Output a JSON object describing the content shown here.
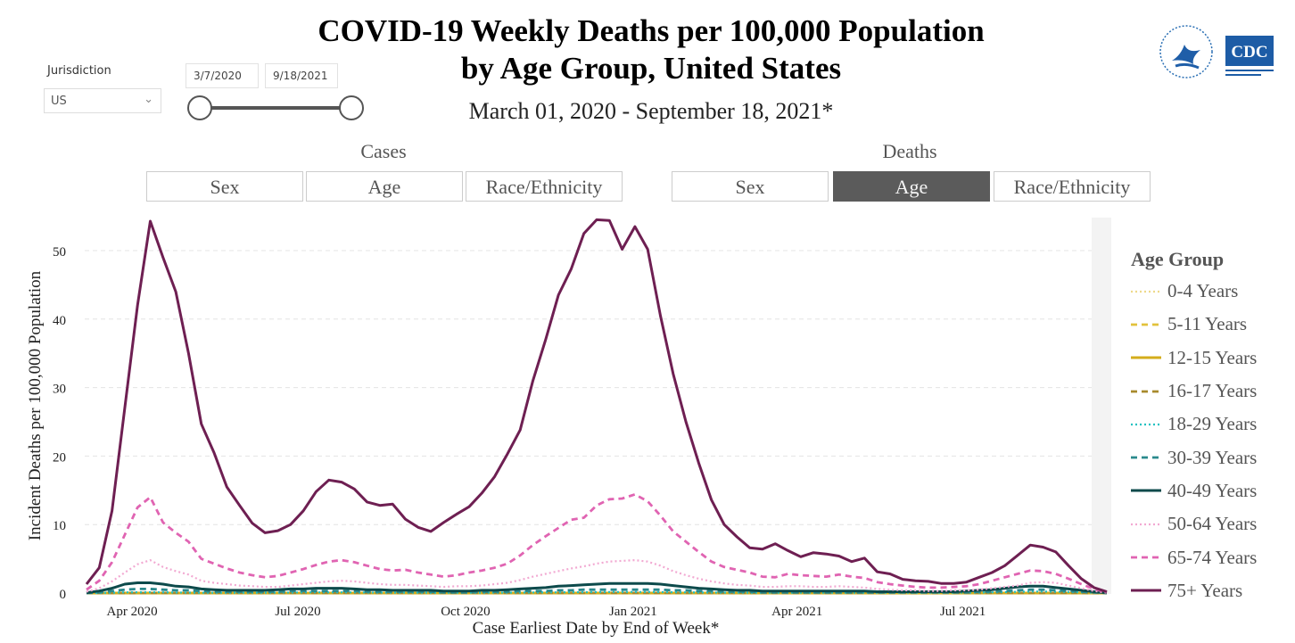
{
  "header": {
    "title_line1": "COVID-19 Weekly Deaths per 100,000 Population",
    "title_line2": "by Age Group, United States",
    "subtitle": "March 01, 2020 - September 18, 2021*",
    "logos": [
      "HHS",
      "CDC"
    ]
  },
  "filters": {
    "jurisdiction_label": "Jurisdiction",
    "jurisdiction_value": "US",
    "start_date": "3/7/2020",
    "end_date": "9/18/2021"
  },
  "tabs": {
    "cases_label": "Cases",
    "deaths_label": "Deaths",
    "cases": [
      "Sex",
      "Age",
      "Race/Ethnicity"
    ],
    "deaths": [
      "Sex",
      "Age",
      "Race/Ethnicity"
    ],
    "active": "Deaths/Age"
  },
  "chart_data": {
    "type": "line",
    "title": "COVID-19 Weekly Deaths per 100,000 Population by Age Group, United States",
    "xlabel": "Case Earliest Date by End of Week*",
    "ylabel": "Incident Deaths per 100,000 Population",
    "x_start": "2020-03-07",
    "x_step_days": 7,
    "ylim": [
      0,
      55
    ],
    "yticks": [
      0,
      10,
      20,
      30,
      40,
      50
    ],
    "xticks": [
      {
        "label": "Apr 2020",
        "date": "2020-04-01"
      },
      {
        "label": "Jul 2020",
        "date": "2020-07-01"
      },
      {
        "label": "Oct 2020",
        "date": "2020-10-01"
      },
      {
        "label": "Jan 2021",
        "date": "2021-01-01"
      },
      {
        "label": "Apr 2021",
        "date": "2021-04-01"
      },
      {
        "label": "Jul 2021",
        "date": "2021-07-01"
      }
    ],
    "grid": true,
    "legend_title": "Age Group",
    "legend_position": "right",
    "series": [
      {
        "name": "0-4 Years",
        "color": "#eed98a",
        "dash": "dot",
        "values": [
          0,
          0,
          0,
          0,
          0.01,
          0.01,
          0.01,
          0.01,
          0.01,
          0.01,
          0.01,
          0.01,
          0.01,
          0.01,
          0.01,
          0.01,
          0.01,
          0.01,
          0.01,
          0.01,
          0.01,
          0.01,
          0.01,
          0.01,
          0.01,
          0.01,
          0.01,
          0.01,
          0.01,
          0.01,
          0.01,
          0.01,
          0.01,
          0.01,
          0.01,
          0.01,
          0.01,
          0.01,
          0.01,
          0.01,
          0.01,
          0.01,
          0.01,
          0.01,
          0.01,
          0.01,
          0.01,
          0.01,
          0.01,
          0.01,
          0.01,
          0.01,
          0.01,
          0.01,
          0.01,
          0.01,
          0.01,
          0.01,
          0.01,
          0.01,
          0.01,
          0.01,
          0.01,
          0.01,
          0.01,
          0.01,
          0.01,
          0.01,
          0.01,
          0.01,
          0.01,
          0.01,
          0.01,
          0.01,
          0.01,
          0.01,
          0.01,
          0.01,
          0.01,
          0,
          0
        ]
      },
      {
        "name": "5-11 Years",
        "color": "#e2c23c",
        "dash": "dash",
        "values": [
          0,
          0,
          0,
          0,
          0,
          0,
          0,
          0,
          0,
          0,
          0,
          0,
          0,
          0,
          0,
          0,
          0,
          0,
          0,
          0,
          0,
          0,
          0,
          0,
          0,
          0,
          0,
          0,
          0,
          0,
          0,
          0,
          0,
          0,
          0,
          0,
          0,
          0,
          0,
          0,
          0,
          0,
          0,
          0,
          0,
          0,
          0,
          0,
          0,
          0,
          0,
          0,
          0,
          0,
          0,
          0,
          0,
          0,
          0,
          0,
          0,
          0,
          0,
          0,
          0,
          0,
          0,
          0,
          0,
          0,
          0,
          0,
          0,
          0,
          0,
          0,
          0,
          0,
          0,
          0,
          0
        ]
      },
      {
        "name": "12-15 Years",
        "color": "#d4ad1c",
        "dash": "solid",
        "values": [
          0,
          0,
          0,
          0,
          0,
          0,
          0,
          0,
          0,
          0,
          0,
          0,
          0,
          0,
          0,
          0,
          0,
          0,
          0,
          0,
          0,
          0,
          0,
          0,
          0,
          0,
          0,
          0,
          0,
          0,
          0,
          0,
          0,
          0,
          0,
          0,
          0,
          0,
          0,
          0,
          0,
          0,
          0,
          0,
          0,
          0,
          0,
          0,
          0,
          0,
          0,
          0,
          0,
          0,
          0,
          0,
          0,
          0,
          0,
          0,
          0,
          0,
          0,
          0,
          0,
          0,
          0,
          0,
          0,
          0,
          0,
          0,
          0,
          0,
          0,
          0,
          0,
          0,
          0,
          0,
          0
        ]
      },
      {
        "name": "16-17 Years",
        "color": "#a88a2c",
        "dash": "dash",
        "values": [
          0,
          0,
          0,
          0,
          0.01,
          0.01,
          0.01,
          0.01,
          0.01,
          0.01,
          0.01,
          0.01,
          0.01,
          0.01,
          0.01,
          0.01,
          0.01,
          0.01,
          0.01,
          0.01,
          0.01,
          0.01,
          0.01,
          0.01,
          0.01,
          0.01,
          0.01,
          0.01,
          0.01,
          0.01,
          0.01,
          0.01,
          0.01,
          0.01,
          0.01,
          0.01,
          0.01,
          0.01,
          0.01,
          0.01,
          0.01,
          0.01,
          0.01,
          0.01,
          0.01,
          0.01,
          0.01,
          0.01,
          0.01,
          0.01,
          0.01,
          0.01,
          0.01,
          0.01,
          0.01,
          0.01,
          0.01,
          0.01,
          0.01,
          0.01,
          0.01,
          0.01,
          0.01,
          0.01,
          0.01,
          0.01,
          0.01,
          0.01,
          0.01,
          0.01,
          0.01,
          0.01,
          0.01,
          0.01,
          0.01,
          0.01,
          0.01,
          0.01,
          0.01,
          0,
          0
        ]
      },
      {
        "name": "18-29 Years",
        "color": "#22c1c1",
        "dash": "dot",
        "values": [
          0,
          0.02,
          0.05,
          0.1,
          0.12,
          0.12,
          0.1,
          0.08,
          0.07,
          0.05,
          0.05,
          0.05,
          0.05,
          0.05,
          0.05,
          0.06,
          0.08,
          0.1,
          0.1,
          0.1,
          0.1,
          0.1,
          0.08,
          0.07,
          0.06,
          0.06,
          0.05,
          0.05,
          0.05,
          0.05,
          0.05,
          0.05,
          0.06,
          0.07,
          0.08,
          0.09,
          0.1,
          0.11,
          0.12,
          0.13,
          0.14,
          0.15,
          0.15,
          0.15,
          0.15,
          0.14,
          0.12,
          0.1,
          0.09,
          0.08,
          0.07,
          0.06,
          0.05,
          0.05,
          0.05,
          0.05,
          0.05,
          0.05,
          0.05,
          0.05,
          0.05,
          0.05,
          0.05,
          0.05,
          0.05,
          0.05,
          0.05,
          0.05,
          0.05,
          0.06,
          0.08,
          0.1,
          0.14,
          0.18,
          0.22,
          0.22,
          0.2,
          0.15,
          0.1,
          0.05,
          0
        ]
      },
      {
        "name": "30-39 Years",
        "color": "#2a8a8c",
        "dash": "dash",
        "values": [
          0,
          0.1,
          0.3,
          0.5,
          0.6,
          0.6,
          0.5,
          0.4,
          0.4,
          0.3,
          0.2,
          0.2,
          0.2,
          0.2,
          0.2,
          0.2,
          0.3,
          0.3,
          0.3,
          0.3,
          0.3,
          0.3,
          0.2,
          0.2,
          0.2,
          0.2,
          0.2,
          0.2,
          0.1,
          0.1,
          0.1,
          0.2,
          0.2,
          0.2,
          0.3,
          0.3,
          0.3,
          0.4,
          0.4,
          0.5,
          0.5,
          0.5,
          0.5,
          0.5,
          0.5,
          0.5,
          0.4,
          0.4,
          0.3,
          0.3,
          0.2,
          0.2,
          0.2,
          0.1,
          0.1,
          0.1,
          0.1,
          0.1,
          0.1,
          0.1,
          0.1,
          0.1,
          0.1,
          0.1,
          0.1,
          0.1,
          0.1,
          0.1,
          0.1,
          0.1,
          0.2,
          0.2,
          0.3,
          0.4,
          0.5,
          0.5,
          0.4,
          0.3,
          0.2,
          0.1,
          0
        ]
      },
      {
        "name": "40-49 Years",
        "color": "#0d4a4b",
        "dash": "solid",
        "values": [
          0.05,
          0.3,
          0.7,
          1.3,
          1.5,
          1.5,
          1.3,
          1,
          0.9,
          0.6,
          0.5,
          0.4,
          0.4,
          0.4,
          0.4,
          0.5,
          0.6,
          0.6,
          0.7,
          0.7,
          0.7,
          0.6,
          0.5,
          0.5,
          0.4,
          0.4,
          0.4,
          0.4,
          0.3,
          0.3,
          0.3,
          0.4,
          0.4,
          0.5,
          0.6,
          0.7,
          0.8,
          1,
          1.1,
          1.2,
          1.3,
          1.4,
          1.4,
          1.4,
          1.4,
          1.3,
          1.1,
          0.9,
          0.7,
          0.6,
          0.5,
          0.4,
          0.4,
          0.3,
          0.3,
          0.3,
          0.3,
          0.3,
          0.3,
          0.3,
          0.3,
          0.3,
          0.2,
          0.2,
          0.2,
          0.2,
          0.2,
          0.2,
          0.2,
          0.3,
          0.4,
          0.5,
          0.7,
          0.9,
          1,
          1,
          0.8,
          0.6,
          0.4,
          0.2,
          0.02
        ]
      },
      {
        "name": "50-64 Years",
        "color": "#f2a9d2",
        "dash": "dot",
        "values": [
          0.2,
          0.7,
          1.7,
          3,
          4.2,
          4.8,
          3.8,
          3.2,
          2.7,
          1.8,
          1.5,
          1.3,
          1.1,
          1,
          0.9,
          0.9,
          1.1,
          1.3,
          1.5,
          1.7,
          1.8,
          1.7,
          1.5,
          1.3,
          1.2,
          1.2,
          1.1,
          1,
          0.9,
          1,
          1,
          1.1,
          1.3,
          1.5,
          1.9,
          2.4,
          2.8,
          3.2,
          3.6,
          3.9,
          4.3,
          4.6,
          4.7,
          4.8,
          4.6,
          4,
          3.2,
          2.6,
          2.1,
          1.7,
          1.4,
          1.2,
          1.1,
          0.9,
          0.9,
          1,
          1,
          0.9,
          0.9,
          1,
          0.9,
          0.8,
          0.6,
          0.5,
          0.4,
          0.4,
          0.3,
          0.3,
          0.4,
          0.4,
          0.5,
          0.7,
          0.9,
          1.1,
          1.5,
          1.6,
          1.5,
          1.1,
          0.7,
          0.3,
          0.05
        ]
      },
      {
        "name": "65-74 Years",
        "color": "#e064b2",
        "dash": "dash",
        "values": [
          0.5,
          1.8,
          4.5,
          8.5,
          12.5,
          14,
          10.3,
          8.8,
          7.5,
          5,
          4.3,
          3.6,
          3,
          2.6,
          2.3,
          2.5,
          3,
          3.5,
          4.1,
          4.6,
          4.8,
          4.5,
          4,
          3.5,
          3.3,
          3.4,
          3,
          2.7,
          2.4,
          2.6,
          3,
          3.3,
          3.7,
          4.3,
          5.5,
          7,
          8.3,
          9.5,
          10.7,
          11,
          12.8,
          13.7,
          13.8,
          14.4,
          13.4,
          11.3,
          9,
          7.5,
          6,
          4.6,
          3.8,
          3.4,
          3,
          2.4,
          2.3,
          2.8,
          2.6,
          2.5,
          2.4,
          2.7,
          2.4,
          2.2,
          1.6,
          1.3,
          1.1,
          0.9,
          0.8,
          0.8,
          0.9,
          1,
          1.3,
          1.8,
          2.3,
          2.8,
          3.3,
          3.2,
          2.8,
          2.1,
          1.3,
          0.6,
          0.1
        ]
      },
      {
        "name": "75+ Years",
        "color": "#6e1f52",
        "dash": "solid",
        "values": [
          1.3,
          3.7,
          12,
          27,
          42,
          54.3,
          49,
          44,
          35,
          24.7,
          20.5,
          15.5,
          12.8,
          10.2,
          8.8,
          9.1,
          10,
          12,
          14.8,
          16.5,
          16.2,
          15.2,
          13.3,
          12.8,
          13,
          10.8,
          9.6,
          9,
          10.3,
          11.5,
          12.6,
          14.6,
          17,
          20.3,
          23.8,
          31,
          37,
          43.5,
          47.3,
          52.5,
          54.5,
          54.4,
          50.2,
          53.5,
          50.2,
          40.5,
          32,
          25,
          19,
          13.6,
          10,
          8.2,
          6.6,
          6.4,
          7.2,
          6.2,
          5.3,
          5.9,
          5.7,
          5.4,
          4.6,
          5.1,
          3.1,
          2.8,
          2,
          1.8,
          1.7,
          1.4,
          1.4,
          1.6,
          2.3,
          3,
          4,
          5.5,
          7,
          6.7,
          6,
          4,
          2.1,
          0.8,
          0.2
        ]
      }
    ]
  }
}
